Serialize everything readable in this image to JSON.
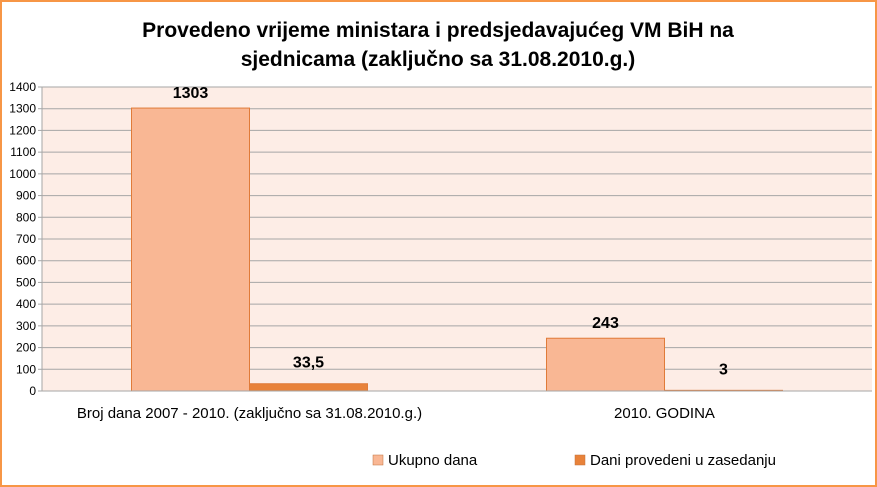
{
  "chart_data": {
    "type": "bar",
    "title": [
      "Provedeno vrijeme ministara i predsjedavajućeg VM BiH na",
      "sjednicama (zaključno sa 31.08.2010.g.)"
    ],
    "categories": [
      "Broj dana 2007 - 2010. (zaključno sa 31.08.2010.g.)",
      "2010. GODINA"
    ],
    "series": [
      {
        "name": "Ukupno dana",
        "values": [
          1303,
          243
        ],
        "labels": [
          "1303",
          "243"
        ],
        "color": "#F9B794"
      },
      {
        "name": "Dani provedeni u zasedanju",
        "values": [
          33.5,
          3
        ],
        "labels": [
          "33,5",
          "3"
        ],
        "color": "#E8823A"
      }
    ],
    "ylim": [
      0,
      1400
    ],
    "yticks": [
      0,
      100,
      200,
      300,
      400,
      500,
      600,
      700,
      800,
      900,
      1000,
      1100,
      1200,
      1300,
      1400
    ],
    "grid": true,
    "plot_background": "#FDEDE6",
    "legend": "bottom-right",
    "xlabel": "",
    "ylabel": ""
  }
}
